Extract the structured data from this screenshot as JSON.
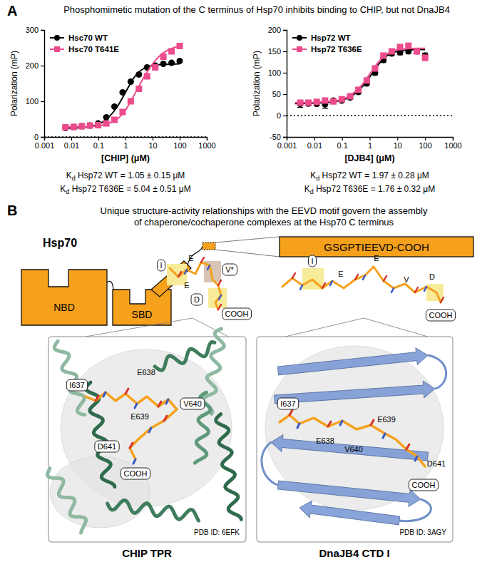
{
  "chart_data": [
    {
      "type": "scatter",
      "x_label": "[CHIP] (μM)",
      "y_label": "Polarization (mP)",
      "log": "x",
      "xlim": [
        0.001,
        1000
      ],
      "xticks": [
        0.001,
        0.01,
        0.1,
        1,
        10,
        100,
        1000
      ],
      "ylim": [
        0,
        300
      ],
      "yticks": [
        0,
        100,
        200,
        300
      ],
      "legend": "upper left",
      "reference_lines": [
        {
          "y": 0,
          "line_style": "dotted"
        }
      ],
      "series": [
        {
          "name": "Hsc70 WT",
          "color": "#000000",
          "marker": "circle",
          "x": [
            0.0061,
            0.0122,
            0.0244,
            0.0488,
            0.0977,
            0.1953,
            0.3906,
            0.7813,
            1.5625,
            3.125,
            6.25,
            12.5,
            25,
            50,
            100
          ],
          "values": [
            25,
            28,
            30,
            32,
            38,
            55,
            85,
            125,
            155,
            175,
            195,
            200,
            205,
            208,
            213
          ],
          "fit": {
            "x": [
              0.005,
              0.01,
              0.02,
              0.05,
              0.1,
              0.2,
              0.5,
              1,
              2,
              5,
              10,
              20,
              50,
              100
            ],
            "values": [
              25,
              25,
              26,
              29,
              35,
              50,
              85,
              125,
              165,
              193,
              200,
              203,
              204,
              205
            ]
          }
        },
        {
          "name": "Hsc70 T641E",
          "color": "#ec4b8c",
          "marker": "square",
          "x": [
            0.0061,
            0.0122,
            0.0244,
            0.0488,
            0.0977,
            0.1953,
            0.3906,
            0.7813,
            1.5625,
            3.125,
            6.25,
            12.5,
            25,
            50,
            100
          ],
          "values": [
            27,
            28,
            30,
            32,
            33,
            38,
            48,
            70,
            100,
            135,
            170,
            195,
            225,
            240,
            255
          ],
          "fit": {
            "x": [
              0.005,
              0.01,
              0.02,
              0.05,
              0.1,
              0.2,
              0.5,
              1,
              2,
              5,
              10,
              20,
              50,
              100
            ],
            "values": [
              28,
              28,
              28,
              29,
              31,
              36,
              50,
              75,
              115,
              170,
              205,
              230,
              248,
              255
            ]
          }
        }
      ],
      "annotations": [
        "Kd Hsp72 WT = 1.05 ± 0.15 μM",
        "Kd Hsp72 T636E = 5.04 ± 0.51 μM"
      ]
    },
    {
      "type": "scatter",
      "x_label": "[DJB4] (μM)",
      "y_label": "Polarization (mP)",
      "log": "x",
      "xlim": [
        0.001,
        1000
      ],
      "xticks": [
        0.001,
        0.01,
        0.1,
        1,
        10,
        100,
        1000
      ],
      "ylim": [
        -50,
        200
      ],
      "yticks": [
        -50,
        0,
        50,
        100,
        150,
        200
      ],
      "legend": "upper left",
      "reference_lines": [
        {
          "y": 0,
          "line_style": "dotted"
        }
      ],
      "series": [
        {
          "name": "Hsp72 WT",
          "color": "#000000",
          "marker": "circle",
          "x": [
            0.0031,
            0.0061,
            0.0122,
            0.0244,
            0.0488,
            0.0977,
            0.1953,
            0.3906,
            0.7813,
            1.5625,
            3.125,
            6.25,
            12.5,
            25,
            50,
            100
          ],
          "values": [
            27,
            28,
            27,
            26,
            35,
            35,
            42,
            55,
            75,
            100,
            130,
            145,
            148,
            150,
            150,
            140
          ],
          "errors": [
            8,
            5,
            4,
            9,
            3,
            3,
            4,
            4,
            5,
            5,
            6,
            5,
            6,
            5,
            5,
            6
          ],
          "fit": {
            "x": [
              0.002,
              0.01,
              0.05,
              0.1,
              0.2,
              0.5,
              1,
              2,
              5,
              10,
              20,
              50,
              100
            ],
            "values": [
              28,
              29,
              32,
              36,
              44,
              65,
              90,
              118,
              143,
              150,
              153,
              154,
              154
            ]
          }
        },
        {
          "name": "Hsp72 T636E",
          "color": "#ec4b8c",
          "marker": "square",
          "x": [
            0.0031,
            0.0061,
            0.0122,
            0.0244,
            0.0488,
            0.0977,
            0.1953,
            0.3906,
            0.7813,
            1.5625,
            3.125,
            6.25,
            12.5,
            25,
            50,
            100
          ],
          "values": [
            30,
            30,
            32,
            35,
            33,
            38,
            45,
            60,
            82,
            110,
            140,
            150,
            160,
            163,
            150,
            135
          ],
          "errors": [
            4,
            4,
            3,
            4,
            3,
            3,
            4,
            4,
            5,
            5,
            6,
            5,
            6,
            6,
            5,
            6
          ],
          "fit": {
            "x": [
              0.002,
              0.01,
              0.05,
              0.1,
              0.2,
              0.5,
              1,
              2,
              5,
              10,
              20,
              50,
              100
            ],
            "values": [
              30,
              31,
              34,
              38,
              47,
              70,
              97,
              124,
              147,
              154,
              156,
              157,
              157
            ]
          }
        }
      ],
      "annotations": [
        "Kd Hsp72 WT = 1.97 ± 0.28 μM",
        "Kd Hsp72 T636E = 1.76 ± 0.32 μM"
      ]
    }
  ],
  "panel_a": {
    "label": "A",
    "title": "Phosphomimetic mutation of the C terminus of Hsp70 inhibits binding to CHIP, but not DnaJB4"
  },
  "panel_b": {
    "label": "B",
    "title_lines": [
      "Unique structure-activity relationships with the EEVD motif govern the assembly",
      "of chaperone/cochaperone complexes at the Hsp70 C terminus"
    ],
    "protein": "Hsp70",
    "domains": [
      "NBD",
      "SBD"
    ],
    "sequence": "GSGPTIEEVD-COOH",
    "peptides": [
      {
        "labels": [
          {
            "text": "I",
            "boxed": true
          },
          {
            "text": "E",
            "boxed": false
          },
          {
            "text": "E",
            "boxed": false
          },
          {
            "text": "V*",
            "boxed": true
          },
          {
            "text": "D",
            "boxed": true
          },
          {
            "text": "COOH",
            "boxed": true
          }
        ]
      },
      {
        "labels": [
          {
            "text": "I",
            "boxed": true
          },
          {
            "text": "E",
            "boxed": false
          },
          {
            "text": "E",
            "boxed": false
          },
          {
            "text": "V",
            "boxed": false
          },
          {
            "text": "D",
            "boxed": false
          },
          {
            "text": "COOH",
            "boxed": true
          }
        ]
      }
    ],
    "structures": [
      {
        "name": "CHIP TPR",
        "pdb": "PDB ID: 6EFK",
        "labels": [
          {
            "text": "E638",
            "boxed": false
          },
          {
            "text": "I637",
            "boxed": true
          },
          {
            "text": "V640",
            "boxed": true
          },
          {
            "text": "E639",
            "boxed": false
          },
          {
            "text": "D641",
            "boxed": true
          },
          {
            "text": "COOH",
            "boxed": true
          }
        ]
      },
      {
        "name": "DnaJB4 CTD I",
        "pdb": "PDB ID: 3AGY",
        "labels": [
          {
            "text": "I637",
            "boxed": true
          },
          {
            "text": "E638",
            "boxed": false
          },
          {
            "text": "E639",
            "boxed": false
          },
          {
            "text": "V640",
            "boxed": false
          },
          {
            "text": "D641",
            "boxed": false
          },
          {
            "text": "COOH",
            "boxed": true
          }
        ]
      }
    ]
  }
}
